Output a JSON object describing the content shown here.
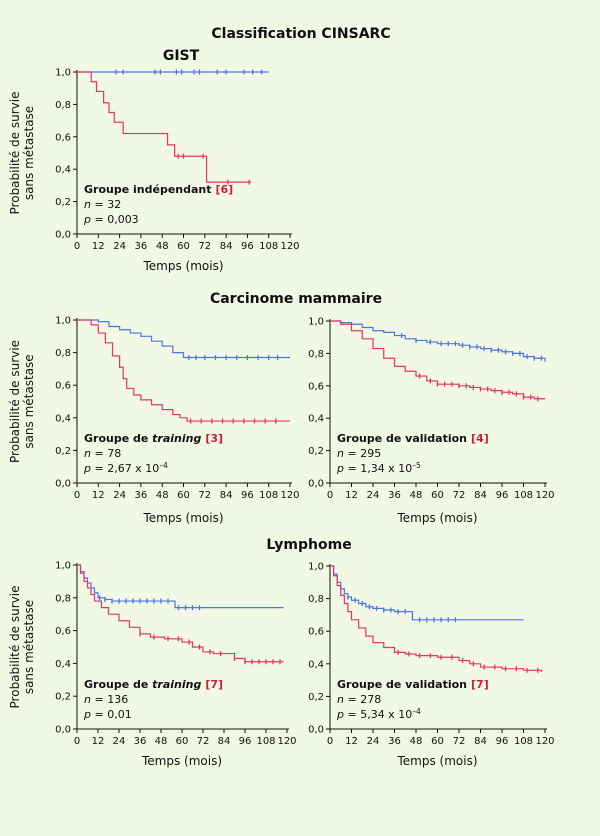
{
  "colors": {
    "blue": "#4d74e6",
    "red": "#e8336a",
    "axis": "#111111",
    "ref": "#cc1f3a"
  },
  "figure_title": "Classification CINSARC",
  "ylabel_line1": "Probabilité de survie",
  "ylabel_line2": "sans métastase",
  "xlabel": "Temps (mois)",
  "sections": [
    {
      "title": "GIST"
    },
    {
      "title": "Carcinome mammaire"
    },
    {
      "title": "Lymphome"
    }
  ],
  "chart_data": [
    {
      "id": "gist",
      "type": "line",
      "subtype": "kaplan-meier",
      "section": "GIST",
      "xlim": [
        0,
        120
      ],
      "ylim": [
        0,
        1
      ],
      "xticks": [
        0,
        12,
        24,
        36,
        48,
        60,
        72,
        84,
        96,
        108,
        120
      ],
      "yticks": [
        "0,0",
        "0,2",
        "0,4",
        "0,6",
        "0,8",
        "1,0"
      ],
      "annotation": {
        "label": "Groupe indépendant",
        "ref": "[6]",
        "n_prefix": "n",
        "n": "= 32",
        "p_prefix": "p",
        "p": "= 0,003"
      },
      "series": [
        {
          "name": "blue",
          "x": [
            0,
            108
          ],
          "y": [
            1.0,
            1.0
          ],
          "censored_x": [
            22,
            26,
            44,
            47,
            56,
            59,
            66,
            69,
            79,
            84,
            94,
            99,
            104
          ]
        },
        {
          "name": "red",
          "x": [
            0,
            8,
            11,
            15,
            18,
            21,
            26,
            51,
            55,
            62,
            73,
            75,
            98
          ],
          "y": [
            1.0,
            0.94,
            0.88,
            0.81,
            0.75,
            0.69,
            0.62,
            0.55,
            0.48,
            0.48,
            0.32,
            0.32,
            0.32
          ],
          "censored_x": [
            57,
            60,
            71,
            85,
            97
          ]
        }
      ]
    },
    {
      "id": "mammaire-training",
      "type": "line",
      "subtype": "kaplan-meier",
      "section": "Carcinome mammaire",
      "xlim": [
        0,
        120
      ],
      "ylim": [
        0,
        1
      ],
      "xticks": [
        0,
        12,
        24,
        36,
        48,
        60,
        72,
        84,
        96,
        108,
        120
      ],
      "yticks": [
        "0,0",
        "0,2",
        "0,4",
        "0,6",
        "0,8",
        "1,0"
      ],
      "annotation": {
        "label_pre": "Groupe de",
        "label_em": "training",
        "ref": "[3]",
        "n_prefix": "n",
        "n": "= 78",
        "p_prefix": "p",
        "p": "= 2,67 x 10",
        "p_exp": "–4"
      },
      "series": [
        {
          "name": "blue",
          "x": [
            0,
            12,
            18,
            24,
            30,
            36,
            42,
            48,
            54,
            60,
            120
          ],
          "y": [
            1.0,
            0.99,
            0.96,
            0.94,
            0.92,
            0.9,
            0.87,
            0.84,
            0.8,
            0.77,
            0.77
          ],
          "censored_x": [
            63,
            67,
            72,
            78,
            84,
            90,
            96,
            102,
            108,
            113
          ]
        },
        {
          "name": "red",
          "x": [
            0,
            8,
            12,
            16,
            20,
            24,
            26,
            28,
            32,
            36,
            42,
            48,
            54,
            58,
            62,
            120
          ],
          "y": [
            1.0,
            0.97,
            0.92,
            0.86,
            0.78,
            0.71,
            0.64,
            0.58,
            0.54,
            0.51,
            0.48,
            0.45,
            0.42,
            0.4,
            0.38,
            0.38
          ],
          "censored_x": [
            64,
            70,
            76,
            82,
            88,
            94,
            100,
            106,
            112
          ]
        }
      ]
    },
    {
      "id": "mammaire-validation",
      "type": "line",
      "subtype": "kaplan-meier",
      "section": "Carcinome mammaire",
      "xlim": [
        0,
        120
      ],
      "ylim": [
        0,
        1
      ],
      "xticks": [
        0,
        12,
        24,
        36,
        48,
        60,
        72,
        84,
        96,
        108,
        120
      ],
      "yticks": [
        "0,0",
        "0,2",
        "0,4",
        "0,6",
        "0,8",
        "1,0"
      ],
      "annotation": {
        "label": "Groupe de validation",
        "ref": "[4]",
        "n_prefix": "n",
        "n": "= 295",
        "p_prefix": "p",
        "p": "= 1,34 x 10",
        "p_exp": "–5"
      },
      "series": [
        {
          "name": "blue",
          "x": [
            0,
            6,
            12,
            18,
            24,
            30,
            36,
            42,
            48,
            54,
            60,
            66,
            72,
            78,
            84,
            90,
            96,
            102,
            108,
            114,
            120
          ],
          "y": [
            1.0,
            0.99,
            0.98,
            0.96,
            0.94,
            0.93,
            0.91,
            0.89,
            0.88,
            0.87,
            0.86,
            0.86,
            0.85,
            0.84,
            0.83,
            0.82,
            0.81,
            0.8,
            0.78,
            0.77,
            0.75
          ],
          "censored_x": [
            40,
            48,
            56,
            62,
            66,
            70,
            74,
            78,
            82,
            86,
            90,
            94,
            98,
            102,
            106,
            110,
            114,
            118
          ]
        },
        {
          "name": "red",
          "x": [
            0,
            6,
            12,
            18,
            24,
            30,
            36,
            42,
            48,
            54,
            60,
            66,
            72,
            78,
            84,
            90,
            96,
            102,
            108,
            114,
            120
          ],
          "y": [
            1.0,
            0.98,
            0.94,
            0.89,
            0.83,
            0.77,
            0.72,
            0.69,
            0.66,
            0.63,
            0.61,
            0.61,
            0.6,
            0.59,
            0.58,
            0.57,
            0.56,
            0.55,
            0.53,
            0.52,
            0.52
          ],
          "censored_x": [
            50,
            56,
            60,
            64,
            68,
            72,
            76,
            80,
            84,
            88,
            92,
            96,
            100,
            104,
            108,
            112,
            116
          ]
        }
      ]
    },
    {
      "id": "lymphome-training",
      "type": "line",
      "subtype": "kaplan-meier",
      "section": "Lymphome",
      "xlim": [
        0,
        120
      ],
      "ylim": [
        0,
        1
      ],
      "xticks": [
        0,
        12,
        24,
        36,
        48,
        60,
        72,
        84,
        96,
        108,
        120
      ],
      "yticks": [
        "0,0",
        "0,2",
        "0,4",
        "0,6",
        "0,8",
        "1,0"
      ],
      "annotation": {
        "label_pre": "Groupe de",
        "label_em": "training",
        "ref": "[7]",
        "n_prefix": "n",
        "n": "= 136",
        "p_prefix": "p",
        "p": "= 0,01"
      },
      "series": [
        {
          "name": "blue",
          "x": [
            0,
            2,
            4,
            6,
            8,
            10,
            12,
            16,
            20,
            54,
            56,
            118
          ],
          "y": [
            1.0,
            0.96,
            0.92,
            0.89,
            0.86,
            0.83,
            0.8,
            0.79,
            0.78,
            0.78,
            0.74,
            0.74
          ],
          "censored_x": [
            13,
            16,
            20,
            24,
            28,
            32,
            36,
            40,
            44,
            48,
            52,
            58,
            62,
            66,
            70
          ]
        },
        {
          "name": "red",
          "x": [
            0,
            2,
            4,
            6,
            8,
            10,
            14,
            18,
            24,
            30,
            36,
            42,
            50,
            60,
            66,
            72,
            78,
            90,
            96,
            118
          ],
          "y": [
            1.0,
            0.95,
            0.9,
            0.86,
            0.82,
            0.78,
            0.74,
            0.7,
            0.66,
            0.62,
            0.58,
            0.56,
            0.55,
            0.53,
            0.5,
            0.47,
            0.46,
            0.43,
            0.41,
            0.41
          ],
          "censored_x": [
            36,
            44,
            52,
            58,
            64,
            70,
            76,
            82,
            90,
            96,
            100,
            104,
            108,
            112,
            116
          ]
        }
      ]
    },
    {
      "id": "lymphome-validation",
      "type": "line",
      "subtype": "kaplan-meier",
      "section": "Lymphome",
      "xlim": [
        0,
        120
      ],
      "ylim": [
        0,
        1
      ],
      "xticks": [
        0,
        12,
        24,
        36,
        48,
        60,
        72,
        84,
        96,
        108,
        120
      ],
      "yticks": [
        "0,0",
        "0,2",
        "0,4",
        "0,6",
        "0,8",
        "1,0"
      ],
      "annotation": {
        "label": "Groupe de validation",
        "ref": "[7]",
        "n_prefix": "n",
        "n": "= 278",
        "p_prefix": "p",
        "p": "= 5,34 x 10",
        "p_exp": "–4"
      },
      "series": [
        {
          "name": "blue",
          "x": [
            0,
            2,
            4,
            6,
            8,
            10,
            12,
            16,
            20,
            24,
            30,
            36,
            40,
            44,
            46,
            48,
            108
          ],
          "y": [
            1.0,
            0.95,
            0.9,
            0.86,
            0.83,
            0.81,
            0.79,
            0.77,
            0.75,
            0.74,
            0.73,
            0.72,
            0.72,
            0.72,
            0.67,
            0.67,
            0.67
          ],
          "censored_x": [
            10,
            14,
            18,
            22,
            26,
            30,
            34,
            38,
            42,
            50,
            54,
            58,
            62,
            66,
            70
          ]
        },
        {
          "name": "red",
          "x": [
            0,
            2,
            4,
            6,
            8,
            10,
            12,
            16,
            20,
            24,
            30,
            36,
            42,
            48,
            60,
            72,
            78,
            84,
            96,
            108,
            118
          ],
          "y": [
            1.0,
            0.94,
            0.88,
            0.82,
            0.77,
            0.72,
            0.67,
            0.62,
            0.57,
            0.53,
            0.5,
            0.47,
            0.46,
            0.45,
            0.44,
            0.42,
            0.4,
            0.38,
            0.37,
            0.36,
            0.35
          ],
          "censored_x": [
            38,
            44,
            50,
            56,
            62,
            68,
            74,
            80,
            86,
            92,
            98,
            104,
            110,
            116
          ]
        }
      ]
    }
  ]
}
